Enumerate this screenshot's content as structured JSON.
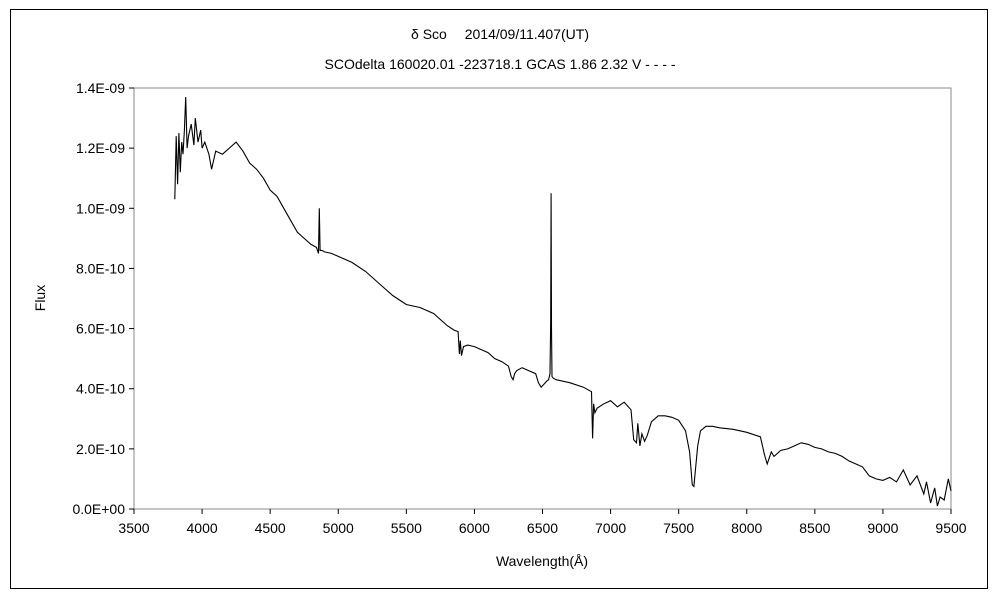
{
  "chart_data": {
    "type": "line",
    "title": "δ Sco　 2014/09/11.407(UT)",
    "subtitle": "SCOdelta 160020.01 -223718.1 GCAS 1.86 2.32 V - - - -",
    "xlabel": "Wavelength(Å)",
    "ylabel": "Flux",
    "xlim": [
      3500,
      9500
    ],
    "ylim": [
      0,
      1.4e-09
    ],
    "x_ticks": [
      "3500",
      "4000",
      "4500",
      "5000",
      "5500",
      "6000",
      "6500",
      "7000",
      "7500",
      "8000",
      "8500",
      "9000",
      "9500"
    ],
    "y_ticks": [
      "0.0E+00",
      "2.0E-10",
      "4.0E-10",
      "6.0E-10",
      "8.0E-10",
      "1.0E-09",
      "1.2E-09",
      "1.4E-09"
    ],
    "grid": false,
    "legend": "none",
    "line_color": "#000000",
    "series": [
      {
        "x": [
          3800,
          3810,
          3820,
          3830,
          3840,
          3850,
          3860,
          3870,
          3880,
          3890,
          3900,
          3920,
          3940,
          3950,
          3970,
          3990,
          4000,
          4020,
          4050,
          4070,
          4100,
          4150,
          4200,
          4250,
          4300,
          4350,
          4400,
          4450,
          4500,
          4550,
          4600,
          4650,
          4700,
          4750,
          4800,
          4840,
          4855,
          4861,
          4867,
          4880,
          4900,
          4950,
          5000,
          5100,
          5200,
          5300,
          5400,
          5500,
          5600,
          5700,
          5800,
          5850,
          5880,
          5890,
          5896,
          5905,
          5920,
          5950,
          6000,
          6050,
          6100,
          6150,
          6200,
          6250,
          6270,
          6284,
          6295,
          6310,
          6350,
          6400,
          6450,
          6470,
          6490,
          6510,
          6530,
          6545,
          6555,
          6560,
          6563,
          6566,
          6570,
          6580,
          6600,
          6700,
          6800,
          6860,
          6868,
          6875,
          6885,
          6900,
          6950,
          7000,
          7050,
          7100,
          7150,
          7170,
          7190,
          7200,
          7215,
          7230,
          7250,
          7270,
          7300,
          7350,
          7400,
          7450,
          7500,
          7550,
          7580,
          7600,
          7612,
          7625,
          7640,
          7660,
          7700,
          7750,
          7800,
          7900,
          8000,
          8100,
          8130,
          8150,
          8180,
          8200,
          8250,
          8300,
          8350,
          8400,
          8450,
          8500,
          8550,
          8600,
          8650,
          8700,
          8750,
          8800,
          8850,
          8900,
          8950,
          9000,
          9050,
          9100,
          9150,
          9200,
          9250,
          9300,
          9320,
          9350,
          9380,
          9400,
          9420,
          9450,
          9480,
          9500
        ],
        "y": [
          1.03e-09,
          1.24e-09,
          1.08e-09,
          1.25e-09,
          1.12e-09,
          1.22e-09,
          1.18e-09,
          1.26e-09,
          1.37e-09,
          1.2e-09,
          1.24e-09,
          1.28e-09,
          1.21e-09,
          1.3e-09,
          1.22e-09,
          1.26e-09,
          1.2e-09,
          1.22e-09,
          1.18e-09,
          1.13e-09,
          1.19e-09,
          1.18e-09,
          1.2e-09,
          1.22e-09,
          1.19e-09,
          1.15e-09,
          1.13e-09,
          1.1e-09,
          1.06e-09,
          1.04e-09,
          1e-09,
          9.6e-10,
          9.2e-10,
          9e-10,
          8.8e-10,
          8.7e-10,
          8.5e-10,
          1e-09,
          8.6e-10,
          8.6e-10,
          8.55e-10,
          8.5e-10,
          8.4e-10,
          8.2e-10,
          7.9e-10,
          7.5e-10,
          7.1e-10,
          6.8e-10,
          6.7e-10,
          6.5e-10,
          6.1e-10,
          5.95e-10,
          5.9e-10,
          5.15e-10,
          5.6e-10,
          5.1e-10,
          5.4e-10,
          5.45e-10,
          5.4e-10,
          5.3e-10,
          5.2e-10,
          5e-10,
          4.9e-10,
          4.75e-10,
          4.4e-10,
          4.3e-10,
          4.5e-10,
          4.6e-10,
          4.7e-10,
          4.6e-10,
          4.5e-10,
          4.2e-10,
          4.05e-10,
          4.15e-10,
          4.25e-10,
          4.3e-10,
          4.5e-10,
          6.3e-10,
          1.05e-09,
          6e-10,
          4.4e-10,
          4.35e-10,
          4.3e-10,
          4.2e-10,
          4.05e-10,
          3.9e-10,
          2.35e-10,
          3.5e-10,
          3.2e-10,
          3.35e-10,
          3.5e-10,
          3.6e-10,
          3.4e-10,
          3.55e-10,
          3.3e-10,
          2.3e-10,
          2.2e-10,
          2.85e-10,
          2.1e-10,
          2.5e-10,
          2.25e-10,
          2.45e-10,
          2.9e-10,
          3.1e-10,
          3.1e-10,
          3.05e-10,
          2.95e-10,
          2.6e-10,
          1.9e-10,
          8e-11,
          7.5e-11,
          1.4e-10,
          2.1e-10,
          2.6e-10,
          2.75e-10,
          2.75e-10,
          2.7e-10,
          2.65e-10,
          2.55e-10,
          2.4e-10,
          1.8e-10,
          1.5e-10,
          1.9e-10,
          1.75e-10,
          1.95e-10,
          2e-10,
          2.1e-10,
          2.2e-10,
          2.15e-10,
          2.05e-10,
          2e-10,
          1.9e-10,
          1.85e-10,
          1.75e-10,
          1.6e-10,
          1.5e-10,
          1.4e-10,
          1.1e-10,
          1e-10,
          9.5e-11,
          1.05e-10,
          9e-11,
          1.3e-10,
          8e-11,
          1.1e-10,
          5e-11,
          9e-11,
          2e-11,
          7e-11,
          1e-11,
          4e-11,
          3e-11,
          1e-10,
          6e-11
        ]
      }
    ]
  }
}
